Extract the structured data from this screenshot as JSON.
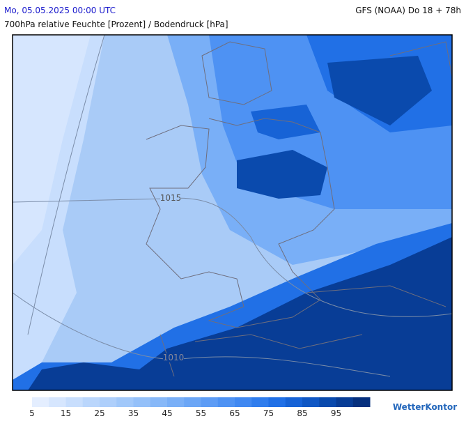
{
  "header": {
    "date": "Mo, 05.05.2025 00:00 UTC",
    "model": "GFS (NOAA) Do 18 + 78h",
    "subtitle": "700hPa relative Feuchte [Prozent] / Bodendruck [hPa]"
  },
  "map": {
    "isobars": [
      {
        "label": "1015"
      },
      {
        "label": "1010"
      }
    ]
  },
  "colorbar": {
    "colors": [
      "#e4eeff",
      "#d6e6fe",
      "#c8defd",
      "#bad6fc",
      "#aecffb",
      "#a1c8fa",
      "#94c0f9",
      "#87b8f8",
      "#79aff7",
      "#6ba6f6",
      "#5d9cf5",
      "#4e92f3",
      "#4088f1",
      "#307ded",
      "#2170e6",
      "#1763d6",
      "#1057c4",
      "#0a4aad",
      "#083d96",
      "#06307e"
    ],
    "ticks": [
      5,
      15,
      25,
      35,
      45,
      55,
      65,
      75,
      85,
      95
    ]
  },
  "brand": "WetterKontor"
}
